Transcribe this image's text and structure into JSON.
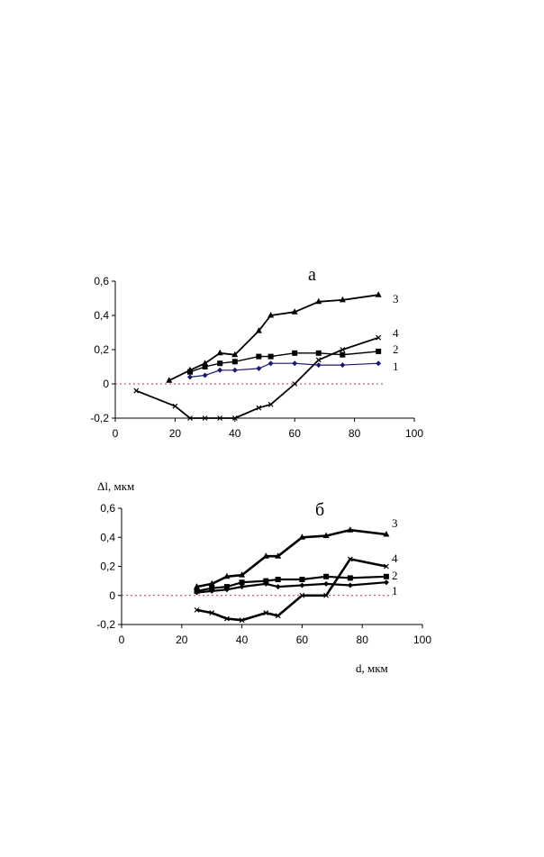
{
  "chart_data": [
    {
      "type": "line",
      "panel_label": "а",
      "xlabel": "",
      "ylabel": "",
      "xlim": [
        0,
        100
      ],
      "ylim": [
        -0.2,
        0.6
      ],
      "xticks": [
        "0",
        "20",
        "40",
        "60",
        "80",
        "100"
      ],
      "yticks": [
        "-0,2",
        "0",
        "0,2",
        "0,4",
        "0,6"
      ],
      "zero_line": true,
      "series": [
        {
          "label": "1",
          "marker": "diamond",
          "color": "#1a1a6e",
          "stroke": 1.2,
          "x": [
            25,
            30,
            35,
            40,
            48,
            52,
            60,
            68,
            76,
            88
          ],
          "y": [
            0.04,
            0.05,
            0.08,
            0.08,
            0.09,
            0.12,
            0.12,
            0.11,
            0.11,
            0.12
          ]
        },
        {
          "label": "2",
          "marker": "square",
          "color": "#000000",
          "stroke": 1.4,
          "x": [
            25,
            30,
            35,
            40,
            48,
            52,
            60,
            68,
            76,
            88
          ],
          "y": [
            0.07,
            0.1,
            0.12,
            0.13,
            0.16,
            0.16,
            0.18,
            0.18,
            0.17,
            0.19
          ]
        },
        {
          "label": "3",
          "marker": "triangle",
          "color": "#000000",
          "stroke": 1.8,
          "x": [
            18,
            25,
            30,
            35,
            40,
            48,
            52,
            60,
            68,
            76,
            88
          ],
          "y": [
            0.02,
            0.08,
            0.12,
            0.18,
            0.17,
            0.31,
            0.4,
            0.42,
            0.48,
            0.49,
            0.52
          ]
        },
        {
          "label": "4",
          "marker": "x",
          "color": "#000000",
          "stroke": 1.8,
          "x": [
            7,
            20,
            25,
            30,
            35,
            40,
            48,
            52,
            60,
            68,
            76,
            88
          ],
          "y": [
            -0.04,
            -0.13,
            -0.2,
            -0.2,
            -0.2,
            -0.2,
            -0.14,
            -0.12,
            0.0,
            0.14,
            0.2,
            0.27
          ]
        }
      ]
    },
    {
      "type": "line",
      "panel_label": "б",
      "xlabel": "d, мкм",
      "ylabel": "Δl, мкм",
      "xlim": [
        0,
        100
      ],
      "ylim": [
        -0.2,
        0.6
      ],
      "xticks": [
        "0",
        "20",
        "40",
        "60",
        "80",
        "100"
      ],
      "yticks": [
        "-0,2",
        "0",
        "0,2",
        "0,4",
        "0,6"
      ],
      "zero_line": true,
      "series": [
        {
          "label": "1",
          "marker": "diamond",
          "color": "#000000",
          "stroke": 2.2,
          "x": [
            25,
            30,
            35,
            40,
            48,
            52,
            60,
            68,
            76,
            88
          ],
          "y": [
            0.02,
            0.03,
            0.04,
            0.06,
            0.08,
            0.06,
            0.07,
            0.08,
            0.07,
            0.09
          ]
        },
        {
          "label": "2",
          "marker": "square",
          "color": "#000000",
          "stroke": 2.2,
          "x": [
            25,
            30,
            35,
            40,
            48,
            52,
            60,
            68,
            76,
            88
          ],
          "y": [
            0.03,
            0.05,
            0.06,
            0.09,
            0.1,
            0.11,
            0.11,
            0.13,
            0.12,
            0.13
          ]
        },
        {
          "label": "3",
          "marker": "triangle",
          "color": "#000000",
          "stroke": 2.6,
          "x": [
            25,
            30,
            35,
            40,
            48,
            52,
            60,
            68,
            76,
            88
          ],
          "y": [
            0.06,
            0.08,
            0.13,
            0.14,
            0.27,
            0.27,
            0.4,
            0.41,
            0.45,
            0.42
          ]
        },
        {
          "label": "4",
          "marker": "x",
          "color": "#000000",
          "stroke": 2.6,
          "x": [
            25,
            30,
            35,
            40,
            48,
            52,
            60,
            68,
            76,
            88
          ],
          "y": [
            -0.1,
            -0.12,
            -0.16,
            -0.17,
            -0.12,
            -0.14,
            0.0,
            0.0,
            0.25,
            0.2
          ]
        }
      ]
    }
  ]
}
